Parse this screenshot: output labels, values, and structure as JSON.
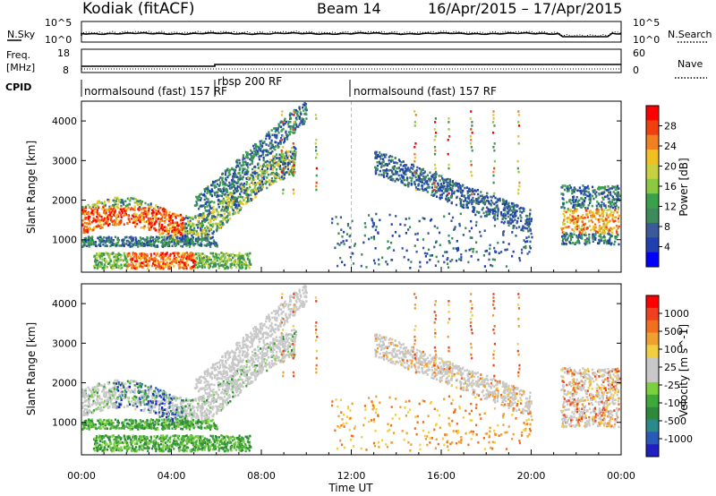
{
  "header": {
    "station": "Kodiak (fitACF)",
    "beam": "Beam 14",
    "date_range": "16/Apr/2015 – 17/Apr/2015"
  },
  "noise_panel": {
    "left_label": "N.Sky",
    "right_label": "N.Search",
    "left_ticks": [
      "10^5",
      "10^0"
    ],
    "right_ticks": [
      "10^5",
      "10^0"
    ]
  },
  "freq_panel": {
    "left_label_1": "Freq.",
    "left_label_2": "[MHz]",
    "right_label": "Nave",
    "left_ticks": [
      "18",
      "8"
    ],
    "right_ticks": [
      "60",
      "0"
    ]
  },
  "cpid_panel": {
    "label": "CPID",
    "segments": [
      {
        "start_hour": 0,
        "end_hour": 12,
        "text": "normalsound (fast) 157 RF"
      },
      {
        "start_hour": 6,
        "end_hour": 6,
        "text": "rbsp 200 RF"
      },
      {
        "start_hour": 12,
        "end_hour": 24,
        "text": "normalsound (fast) 157 RF"
      }
    ]
  },
  "chart_data": [
    {
      "type": "heatmap",
      "name": "power",
      "xlabel": "Time UT",
      "ylabel": "Slant Range [km]",
      "x_range_hours": [
        0,
        24
      ],
      "ylim": [
        180,
        4500
      ],
      "y_ticks": [
        1000,
        2000,
        3000,
        4000
      ],
      "colorbar_label": "Power [dB]",
      "colorbar_ticks": [
        28,
        24,
        20,
        16,
        12,
        8,
        4
      ],
      "colorbar_colors": [
        "#0000ff",
        "#2040b0",
        "#3a5a9a",
        "#3d8a5a",
        "#3aa04a",
        "#8cc840",
        "#c8d040",
        "#f0c020",
        "#f08020",
        "#f04010",
        "#ff0000"
      ]
    },
    {
      "type": "heatmap",
      "name": "velocity",
      "xlabel": "Time UT",
      "ylabel": "Slant Range [km]",
      "x_range_hours": [
        0,
        24
      ],
      "ylim": [
        180,
        4500
      ],
      "y_ticks": [
        1000,
        2000,
        3000,
        4000
      ],
      "colorbar_label": "Velocity [m s^-1]",
      "colorbar_ticks": [
        1000,
        500,
        100,
        25,
        -25,
        -100,
        -500,
        -1000
      ],
      "colorbar_colors": [
        "#2020c0",
        "#2a5ab8",
        "#2a8a8a",
        "#2e8a3a",
        "#3fa83a",
        "#7cd040",
        "#c8c8c8",
        "#c8c8c8",
        "#f0d040",
        "#f0a030",
        "#f07020",
        "#f04020",
        "#ff0000"
      ]
    }
  ],
  "x_ticks": [
    "00:00",
    "04:00",
    "08:00",
    "12:00",
    "16:00",
    "20:00",
    "00:00"
  ],
  "x_axis_label": "Time UT"
}
